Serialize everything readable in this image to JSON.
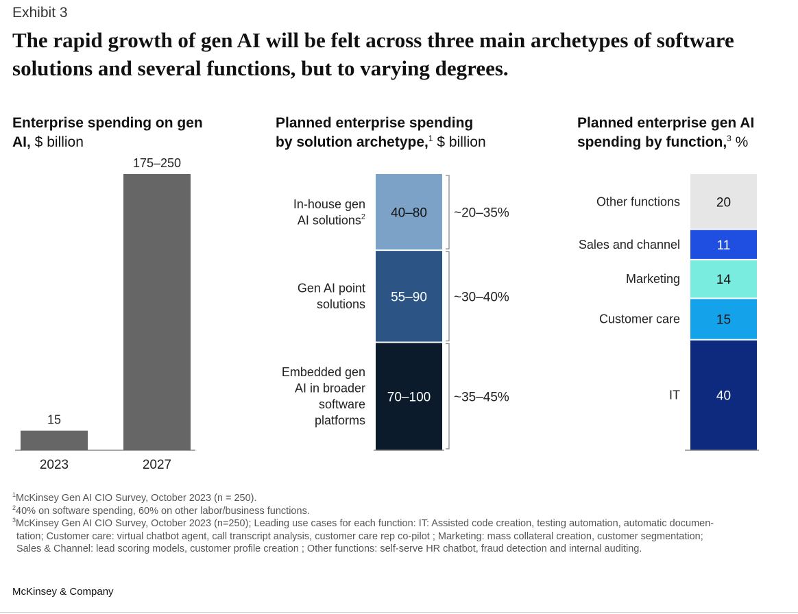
{
  "exhibit": "Exhibit 3",
  "headline": "The rapid growth of gen AI will be felt across three main archetypes of software solutions and several functions, but to varying degrees.",
  "panel1": {
    "title_bold": "Enterprise spending on gen AI,",
    "title_rest": " $ billion"
  },
  "panel2": {
    "title_bold_1": "Planned enterprise spending",
    "title_bold_2": "by solution archetype,",
    "title_sup": "1",
    "title_rest": " $ billion"
  },
  "panel3": {
    "title_bold_1": "Planned enterprise gen AI",
    "title_bold_2": "spending by function,",
    "title_sup": "3",
    "title_rest": " %"
  },
  "chart_data": [
    {
      "type": "bar",
      "categories": [
        "2023",
        "2027"
      ],
      "values": [
        15,
        212.5
      ],
      "value_labels": [
        "15",
        "175–250"
      ],
      "color": "#666666"
    },
    {
      "type": "bar",
      "stacked": true,
      "segments": [
        {
          "label_lines": [
            "In-house gen",
            "AI solutions"
          ],
          "label_sup": "2",
          "range": [
            40,
            80
          ],
          "value_label": "40–80",
          "share": "~20–35%",
          "color": "#7ca2c8",
          "text_color": "#111111"
        },
        {
          "label_lines": [
            "Gen AI point",
            "solutions"
          ],
          "label_sup": "",
          "range": [
            55,
            90
          ],
          "value_label": "55–90",
          "share": "~30–40%",
          "color": "#2c5585",
          "text_color": "#ffffff"
        },
        {
          "label_lines": [
            "Embedded gen",
            "AI in broader",
            "software",
            "platforms"
          ],
          "label_sup": "",
          "range": [
            70,
            100
          ],
          "value_label": "70–100",
          "share": "~35–45%",
          "color": "#0b1b2c",
          "text_color": "#ffffff"
        }
      ]
    },
    {
      "type": "bar",
      "stacked": true,
      "unit": "%",
      "segments": [
        {
          "label": "Other functions",
          "value": 20,
          "color": "#e6e6e6",
          "text_color": "#111111"
        },
        {
          "label": "Sales and channel",
          "value": 11,
          "color": "#1f4fe0",
          "text_color": "#ffffff"
        },
        {
          "label": "Marketing",
          "value": 14,
          "color": "#79ecdf",
          "text_color": "#111111"
        },
        {
          "label": "Customer care",
          "value": 15,
          "color": "#14a2ea",
          "text_color": "#111111"
        },
        {
          "label": "IT",
          "value": 40,
          "color": "#0d2a7e",
          "text_color": "#ffffff"
        }
      ]
    }
  ],
  "footnotes": {
    "f1_sup": "1",
    "f1": "McKinsey Gen AI CIO Survey, October 2023 (n = 250).",
    "f2_sup": "2",
    "f2": "40% on software spending, 60% on other labor/business functions.",
    "f3_sup": "3",
    "f3_line1": "McKinsey Gen AI CIO Survey, October 2023 (n=250); Leading use cases for each function: IT: Assisted code creation, testing automation, automatic documen-",
    "f3_line2": "tation; Customer care: virtual chatbot agent, call transcript analysis, customer care rep co-pilot ; Marketing: mass collateral creation, customer segmentation;",
    "f3_line3": "Sales & Channel: lead scoring models, customer profile creation ; Other functions: self-serve HR chatbot, fraud detection and internal auditing."
  },
  "footer": "McKinsey & Company"
}
